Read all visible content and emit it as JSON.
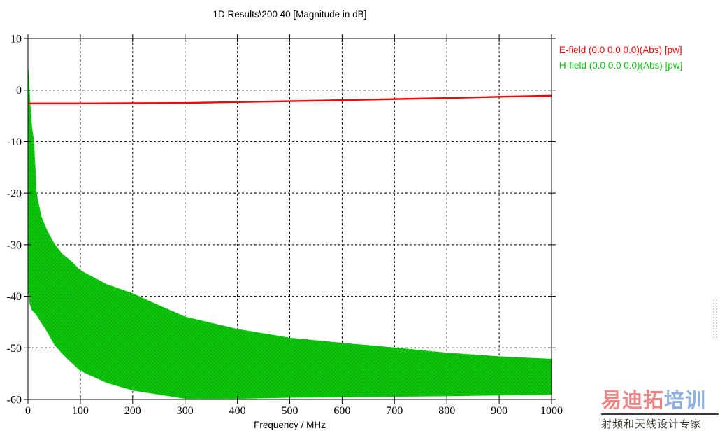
{
  "page": {
    "background": "#ffffff"
  },
  "chart_data": {
    "type": "line",
    "title": "1D Results\\200 40 [Magnitude in dB]",
    "xlabel": "Frequency / MHz",
    "ylabel": "",
    "xlim": [
      0,
      1000
    ],
    "ylim": [
      -60,
      10
    ],
    "xticks": [
      0,
      100,
      200,
      300,
      400,
      500,
      600,
      700,
      800,
      900,
      1000
    ],
    "yticks": [
      10,
      0,
      -10,
      -20,
      -30,
      -40,
      -50,
      -60
    ],
    "grid": "dashed",
    "legend_position": "top-right-outside",
    "series": [
      {
        "name": "E-field (0.0 0.0 0.0)(Abs) [pw]",
        "color": "#ff0000",
        "style": "line",
        "x": [
          0,
          50,
          100,
          200,
          300,
          350,
          440,
          530,
          600,
          660,
          700,
          800,
          900,
          1000
        ],
        "y": [
          -2.6,
          -2.6,
          -2.6,
          -2.55,
          -2.5,
          -2.4,
          -2.25,
          -2.1,
          -1.95,
          -1.85,
          -1.75,
          -1.55,
          -1.3,
          -1.1
        ]
      },
      {
        "name": "H-field (0.0 0.0 0.0)(Abs) [pw]",
        "color": "#0cc40c",
        "dot_color": "#0a9a0a",
        "style": "band",
        "note": "dense oscillating spectrum rendered as filled envelope",
        "x": [
          0,
          2,
          4,
          7,
          11,
          16,
          25,
          35,
          51,
          65,
          80,
          100,
          150,
          200,
          250,
          300,
          400,
          500,
          600,
          700,
          800,
          900,
          1000
        ],
        "y_top": [
          4.2,
          1,
          -3,
          -7,
          -10,
          -20,
          -24.5,
          -27,
          -30,
          -31.8,
          -33,
          -35,
          -37.7,
          -39.5,
          -41.8,
          -44,
          -46.4,
          -48.1,
          -49.1,
          -50,
          -51,
          -51.7,
          -52.2
        ],
        "y_bottom": [
          -38,
          -40,
          -41.5,
          -42.5,
          -43,
          -43.5,
          -45,
          -46.5,
          -49.4,
          -51,
          -52.5,
          -54.4,
          -56.7,
          -58.2,
          -59,
          -59.8,
          -59.8,
          -59.6,
          -59.5,
          -59.4,
          -59.3,
          -59.15,
          -59
        ]
      }
    ]
  },
  "watermark": {
    "text_red": "易迪拓",
    "text_blue": "培训",
    "subtitle": "射频和天线设计专家",
    "red_color": "#ee8585",
    "blue_color": "#8fb0e0",
    "subtitle_color": "#3c3c34",
    "underline_color": "#3c3c34"
  }
}
